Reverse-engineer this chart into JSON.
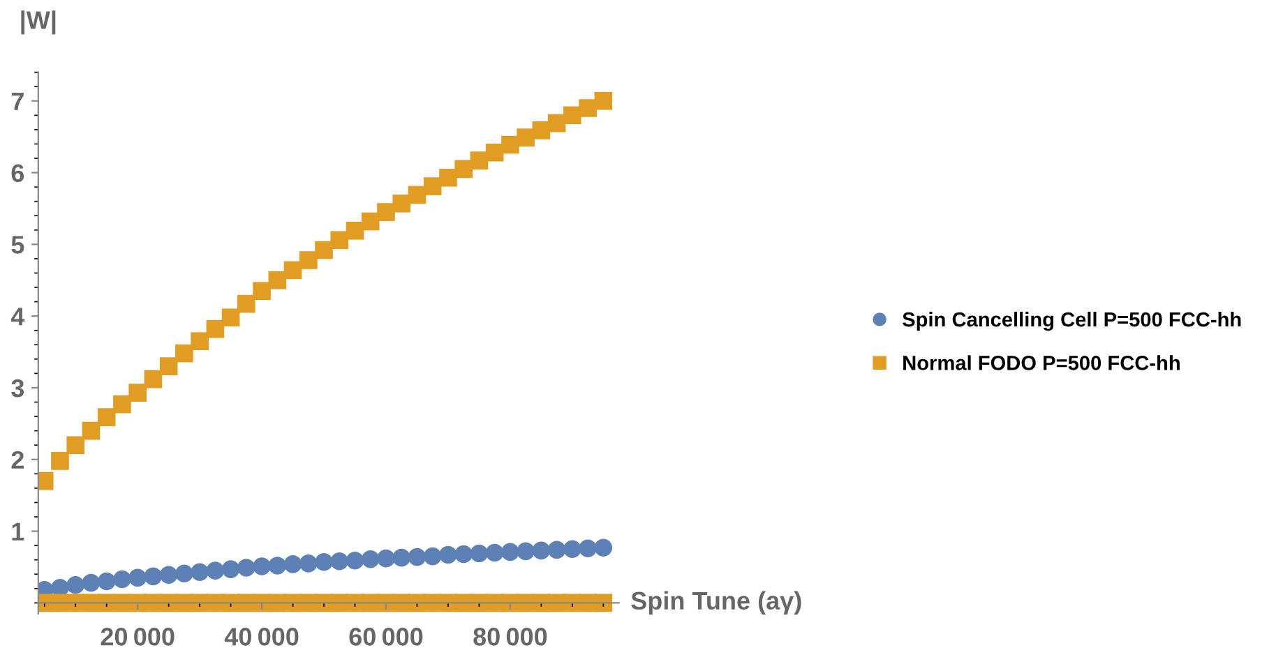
{
  "chart_data": {
    "type": "scatter",
    "xlabel": "Spin Tune (aγ)",
    "ylabel": "|W|",
    "x": [
      5000,
      7500,
      10000,
      12500,
      15000,
      17500,
      20000,
      22500,
      25000,
      27500,
      30000,
      32500,
      35000,
      37500,
      40000,
      42500,
      45000,
      47500,
      50000,
      52500,
      55000,
      57500,
      60000,
      62500,
      65000,
      67500,
      70000,
      72500,
      75000,
      77500,
      80000,
      82500,
      85000,
      87500,
      90000,
      92500,
      95000
    ],
    "series": [
      {
        "name": "Spin Cancelling Cell P=500 FCC-hh",
        "color": "#5e81b5",
        "marker": "circle",
        "values": [
          0.18,
          0.21,
          0.25,
          0.28,
          0.3,
          0.33,
          0.35,
          0.37,
          0.39,
          0.41,
          0.43,
          0.45,
          0.47,
          0.49,
          0.51,
          0.52,
          0.54,
          0.55,
          0.57,
          0.58,
          0.59,
          0.61,
          0.62,
          0.63,
          0.64,
          0.65,
          0.67,
          0.68,
          0.69,
          0.7,
          0.71,
          0.72,
          0.73,
          0.74,
          0.75,
          0.76,
          0.77
        ]
      },
      {
        "name": "Normal FODO P=500 FCC-hh",
        "color": "#e19c24",
        "marker": "square",
        "values": [
          1.7,
          1.98,
          2.2,
          2.4,
          2.59,
          2.77,
          2.93,
          3.12,
          3.3,
          3.48,
          3.65,
          3.82,
          3.98,
          4.17,
          4.35,
          4.5,
          4.64,
          4.78,
          4.92,
          5.06,
          5.19,
          5.32,
          5.45,
          5.57,
          5.69,
          5.81,
          5.93,
          6.05,
          6.17,
          6.28,
          6.39,
          6.49,
          6.59,
          6.69,
          6.8,
          6.9,
          7.0
        ]
      },
      {
        "color": "#e19c24",
        "marker": "square",
        "values": [
          0,
          0,
          0,
          0,
          0,
          0,
          0,
          0,
          0,
          0,
          0,
          0,
          0,
          0,
          0,
          0,
          0,
          0,
          0,
          0,
          0,
          0,
          0,
          0,
          0,
          0,
          0,
          0,
          0,
          0,
          0,
          0,
          0,
          0,
          0,
          0,
          0
        ]
      }
    ],
    "xlim": [
      4000,
      97500
    ],
    "ylim": [
      -0.15,
      7.4
    ],
    "xticks": [
      20000,
      40000,
      60000,
      80000
    ],
    "yticks": [
      1,
      2,
      3,
      4,
      5,
      6,
      7
    ],
    "grid": false,
    "legend": "right"
  }
}
